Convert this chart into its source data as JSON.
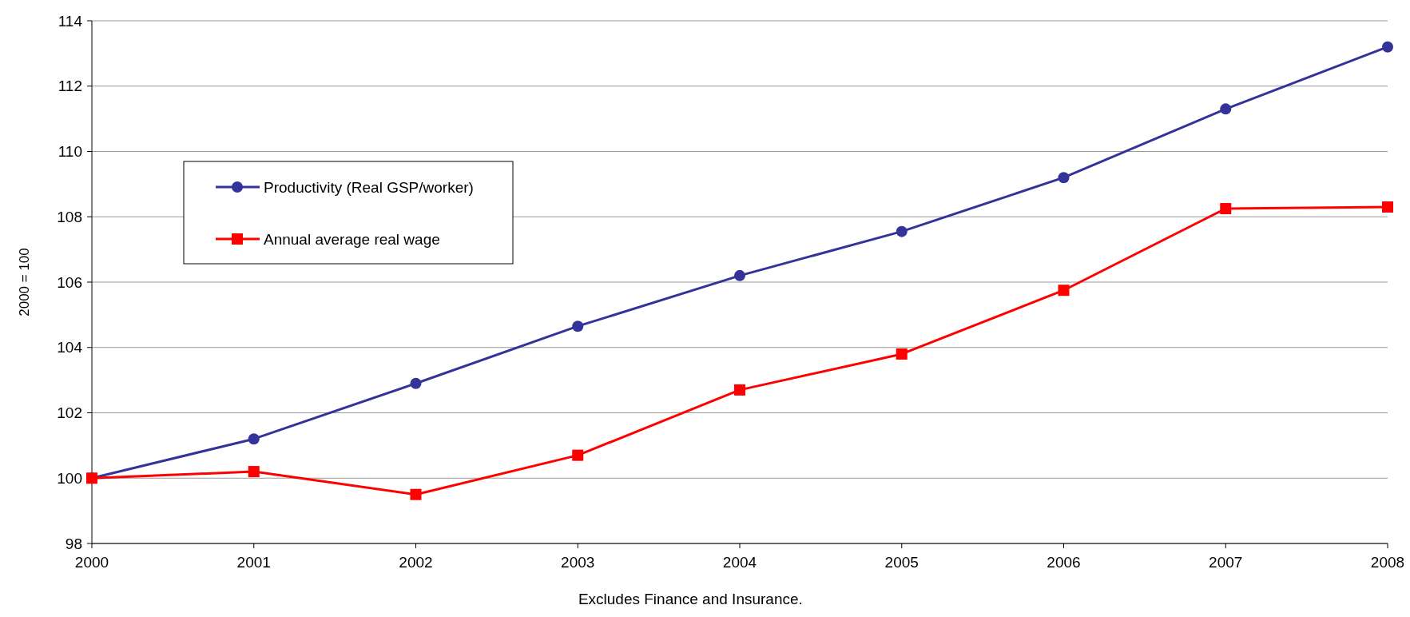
{
  "chart_data": {
    "type": "line",
    "ylabel": "2000 = 100",
    "x": [
      2000,
      2001,
      2002,
      2003,
      2004,
      2005,
      2006,
      2007,
      2008
    ],
    "xlim": [
      2000,
      2008
    ],
    "xticks": [
      2000,
      2001,
      2002,
      2003,
      2004,
      2005,
      2006,
      2007,
      2008
    ],
    "ylim": [
      98,
      114
    ],
    "yticks": [
      98,
      100,
      102,
      104,
      106,
      108,
      110,
      112,
      114
    ],
    "grid": "y",
    "legend": "top left",
    "line_style": "solid",
    "series": [
      {
        "name": "Productivity (Real GSP/worker)",
        "color": "#333399",
        "marker": "circle",
        "values": [
          100,
          101.2,
          102.9,
          104.65,
          106.2,
          107.55,
          109.2,
          111.3,
          113.2
        ]
      },
      {
        "name": "Annual average real wage",
        "color": "#ff0000",
        "marker": "square",
        "values": [
          100,
          100.2,
          99.5,
          100.7,
          102.7,
          103.8,
          105.75,
          108.25,
          108.3
        ]
      }
    ],
    "annotations": [
      "Excludes Finance and Insurance."
    ]
  }
}
